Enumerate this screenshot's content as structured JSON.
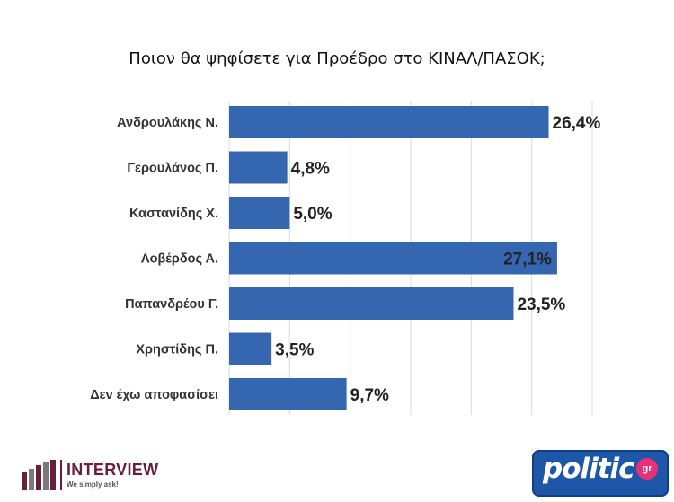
{
  "chart_data": {
    "type": "bar",
    "orientation": "horizontal",
    "title": "Ποιον θα ψηφίσετε για Προέδρο στο ΚΙΝΑΛ/ΠΑΣΟΚ;",
    "categories": [
      "Ανδρουλάκης Ν.",
      "Γερουλάνος Π.",
      "Καστανίδης Χ.",
      "Λοβέρδος Α.",
      "Παπανδρέου Γ.",
      "Χρηστίδης Π.",
      "Δεν έχω αποφασίσει"
    ],
    "values": [
      26.4,
      4.8,
      5.0,
      27.1,
      23.5,
      3.5,
      9.7
    ],
    "value_labels": [
      "26,4%",
      "4,8%",
      "5,0%",
      "27,1%",
      "23,5%",
      "3,5%",
      "9,7%"
    ],
    "xlim": [
      0,
      30
    ],
    "grid": true,
    "bar_color": "#3567b0"
  },
  "logos": {
    "interview": {
      "name": "INTERVIEW",
      "tagline": "We simply ask!"
    },
    "politic": {
      "name": "politic",
      "badge": "gr"
    }
  }
}
